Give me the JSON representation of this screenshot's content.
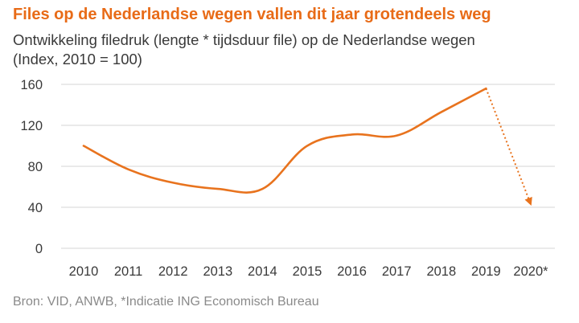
{
  "title": "Files op de Nederlandse wegen vallen dit jaar grotendeels weg",
  "subtitle_line1": "Ontwikkeling filedruk (lengte * tijdsduur file) op de Nederlandse wegen",
  "subtitle_line2": "(Index, 2010 = 100)",
  "source": "Bron: VID, ANWB, *Indicatie ING Economisch Bureau",
  "colors": {
    "line": "#e8731e",
    "title": "#e86b17",
    "grid": "#d6d6d6",
    "text": "#3a3a3a"
  },
  "chart_data": {
    "type": "line",
    "categories": [
      "2010",
      "2011",
      "2012",
      "2013",
      "2014",
      "2015",
      "2016",
      "2017",
      "2018",
      "2019",
      "2020*"
    ],
    "series": [
      {
        "values": [
          100,
          77,
          64,
          58,
          58,
          100,
          111,
          110,
          133,
          156,
          null
        ],
        "style": "solid"
      },
      {
        "values": [
          null,
          null,
          null,
          null,
          null,
          null,
          null,
          null,
          null,
          156,
          43
        ],
        "style": "dotted-arrow"
      }
    ],
    "ylim": [
      0,
      160
    ],
    "yticks": [
      0,
      40,
      80,
      120,
      160
    ],
    "grid": "horizontal",
    "xlabel": "",
    "ylabel": ""
  }
}
